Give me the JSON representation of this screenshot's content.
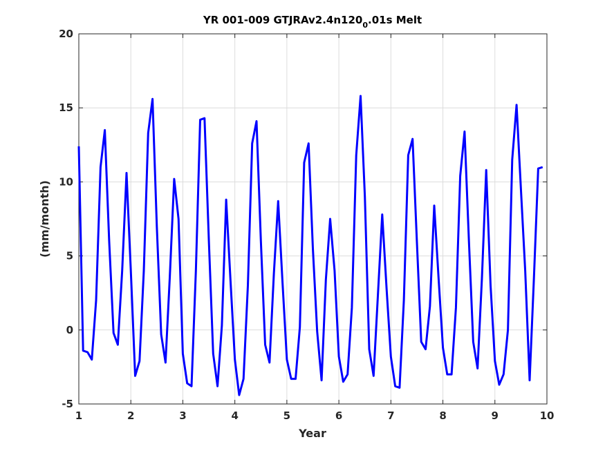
{
  "chart_data": {
    "type": "line",
    "title": "YR 001-009 GTJRAv2.4n120",
    "title_subscript": "0",
    "title_suffix": ".01s Melt",
    "xlabel": "Year",
    "ylabel": "(mm/month)",
    "xlim": [
      1,
      10
    ],
    "ylim": [
      -5,
      20
    ],
    "xticks": [
      1,
      2,
      3,
      4,
      5,
      6,
      7,
      8,
      9,
      10
    ],
    "yticks": [
      -5,
      0,
      5,
      10,
      15,
      20
    ],
    "grid": true,
    "line_color": "#0000ff",
    "series": [
      {
        "x": [
          1.0,
          1.083,
          1.167,
          1.25,
          1.333,
          1.417,
          1.5,
          1.583,
          1.667,
          1.75,
          1.833,
          1.917,
          2.0,
          2.083,
          2.167,
          2.25,
          2.333,
          2.417,
          2.5,
          2.583,
          2.667,
          2.75,
          2.833,
          2.917,
          3.0,
          3.083,
          3.167,
          3.25,
          3.333,
          3.417,
          3.5,
          3.583,
          3.667,
          3.75,
          3.833,
          3.917,
          4.0,
          4.083,
          4.167,
          4.25,
          4.333,
          4.417,
          4.5,
          4.583,
          4.667,
          4.75,
          4.833,
          4.917,
          5.0,
          5.083,
          5.167,
          5.25,
          5.333,
          5.417,
          5.5,
          5.583,
          5.667,
          5.75,
          5.833,
          5.917,
          6.0,
          6.083,
          6.167,
          6.25,
          6.333,
          6.417,
          6.5,
          6.583,
          6.667,
          6.75,
          6.833,
          6.917,
          7.0,
          7.083,
          7.167,
          7.25,
          7.333,
          7.417,
          7.5,
          7.583,
          7.667,
          7.75,
          7.833,
          7.917,
          8.0,
          8.083,
          8.167,
          8.25,
          8.333,
          8.417,
          8.5,
          8.583,
          8.667,
          8.75,
          8.833,
          8.917,
          9.0,
          9.083,
          9.167,
          9.25,
          9.333,
          9.417,
          9.5,
          9.583,
          9.667,
          9.75,
          9.833,
          9.917
        ],
        "y": [
          12.4,
          -1.4,
          -1.5,
          -2.0,
          2.0,
          11.0,
          13.5,
          6.0,
          -0.2,
          -1.0,
          4.0,
          10.6,
          4.0,
          -3.1,
          -2.1,
          4.0,
          13.3,
          15.6,
          7.0,
          -0.3,
          -2.2,
          3.6,
          10.2,
          7.5,
          -1.6,
          -3.6,
          -3.8,
          4.0,
          14.2,
          14.3,
          6.0,
          -1.6,
          -3.8,
          0.3,
          8.8,
          3.3,
          -2.0,
          -4.4,
          -3.3,
          3.0,
          12.6,
          14.1,
          6.0,
          -1.0,
          -2.2,
          3.8,
          8.7,
          3.2,
          -2.0,
          -3.3,
          -3.3,
          0.2,
          11.3,
          12.6,
          5.5,
          -0.1,
          -3.4,
          3.4,
          7.5,
          4.0,
          -1.8,
          -3.5,
          -3.0,
          1.5,
          11.8,
          15.8,
          9.0,
          -1.3,
          -3.1,
          2.3,
          7.8,
          2.8,
          -1.8,
          -3.8,
          -3.9,
          2.0,
          11.8,
          12.9,
          6.0,
          -0.8,
          -1.3,
          1.6,
          8.4,
          3.5,
          -1.2,
          -3.0,
          -3.0,
          1.5,
          10.4,
          13.4,
          6.0,
          -0.8,
          -2.6,
          3.5,
          10.8,
          3.0,
          -2.1,
          -3.7,
          -3.0,
          0.0,
          11.5,
          15.2,
          9.5,
          4.0,
          -3.4,
          3.5,
          10.9,
          11.0
        ]
      }
    ]
  }
}
